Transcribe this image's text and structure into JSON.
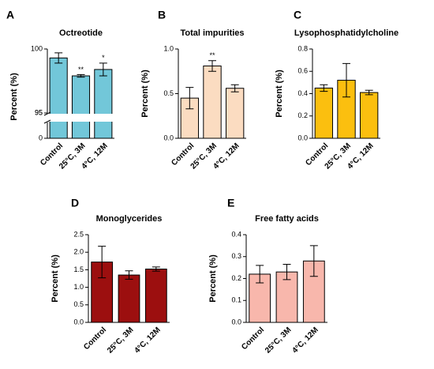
{
  "chart_data": [
    {
      "type": "bar",
      "label": "A",
      "title": "Octreotide",
      "ylabel": "Percent (%)",
      "categories": [
        "Control",
        "25°C, 3M",
        "4°C, 12M"
      ],
      "values": [
        99.3,
        97.9,
        98.4
      ],
      "errors": [
        0.4,
        0.1,
        0.5
      ],
      "value_annotations": [
        null,
        "**",
        "*"
      ],
      "color": "#72c7d9",
      "ylim": [
        95,
        100
      ],
      "yticks": [
        95,
        100
      ],
      "y_break": {
        "ylim": [
          0,
          95
        ],
        "yticks": [
          0,
          95
        ]
      }
    },
    {
      "type": "bar",
      "label": "B",
      "title": "Total impurities",
      "ylabel": "Percent (%)",
      "categories": [
        "Control",
        "25°C, 3M",
        "4°C, 12M"
      ],
      "values": [
        0.45,
        0.81,
        0.56
      ],
      "errors": [
        0.12,
        0.06,
        0.04
      ],
      "value_annotations": [
        null,
        "**",
        null
      ],
      "color": "#fbdcc1",
      "ylim": [
        0,
        1
      ],
      "yticks": [
        {
          "value": 0,
          "label": "0.0"
        },
        {
          "value": 0.5,
          "label": "0.5"
        },
        {
          "value": 1,
          "label": "1.0"
        }
      ]
    },
    {
      "type": "bar",
      "label": "C",
      "title": "Lysophosphatidylcholine",
      "ylabel": "Percent (%)",
      "categories": [
        "Control",
        "25°C, 3M",
        "4°C, 12M"
      ],
      "values": [
        0.45,
        0.52,
        0.41
      ],
      "errors": [
        0.03,
        0.15,
        0.02
      ],
      "color": "#fbbf0f",
      "ylim": [
        0,
        0.8
      ],
      "yticks": [
        {
          "value": 0,
          "label": "0.0"
        },
        0.2,
        0.4,
        0.6,
        0.8
      ]
    },
    {
      "type": "bar",
      "label": "D",
      "title": "Monoglycerides",
      "ylabel": "Percent (%)",
      "categories": [
        "Control",
        "25°C, 3M",
        "4°C, 12M"
      ],
      "values": [
        1.72,
        1.35,
        1.52
      ],
      "errors": [
        0.45,
        0.12,
        0.06
      ],
      "color": "#9c0f0f",
      "ylim": [
        0,
        2.5
      ],
      "yticks": [
        {
          "value": 0,
          "label": "0.0"
        },
        0.5,
        {
          "value": 1,
          "label": "1.0"
        },
        1.5,
        {
          "value": 2,
          "label": "2.0"
        },
        2.5
      ]
    },
    {
      "type": "bar",
      "label": "E",
      "title": "Free fatty acids",
      "ylabel": "Percent (%)",
      "categories": [
        "Control",
        "25°C, 3M",
        "4°C, 12M"
      ],
      "values": [
        0.22,
        0.23,
        0.28
      ],
      "errors": [
        0.04,
        0.035,
        0.07
      ],
      "color": "#f8b7ac",
      "ylim": [
        0,
        0.4
      ],
      "yticks": [
        {
          "value": 0,
          "label": "0.0"
        },
        0.1,
        0.2,
        0.3,
        0.4
      ]
    }
  ]
}
